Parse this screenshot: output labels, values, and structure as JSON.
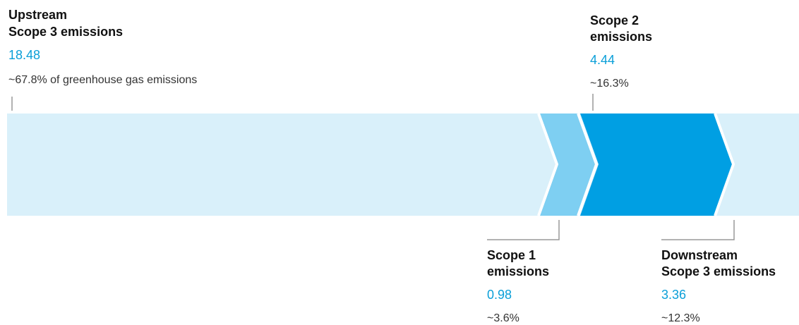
{
  "segments": [
    {
      "name": [
        "Upstream",
        "Scope 3 emissions"
      ],
      "value": "18.48",
      "share": "~67.8% of greenhouse gas emissions"
    },
    {
      "name": [
        "Scope 1",
        "emissions"
      ],
      "value": "0.98",
      "share": "~3.6%"
    },
    {
      "name": [
        "Scope 2",
        "emissions"
      ],
      "value": "4.44",
      "share": "~16.3%"
    },
    {
      "name": [
        "Downstream",
        "Scope 3 emissions"
      ],
      "value": "3.36",
      "share": "~12.3%"
    }
  ]
}
